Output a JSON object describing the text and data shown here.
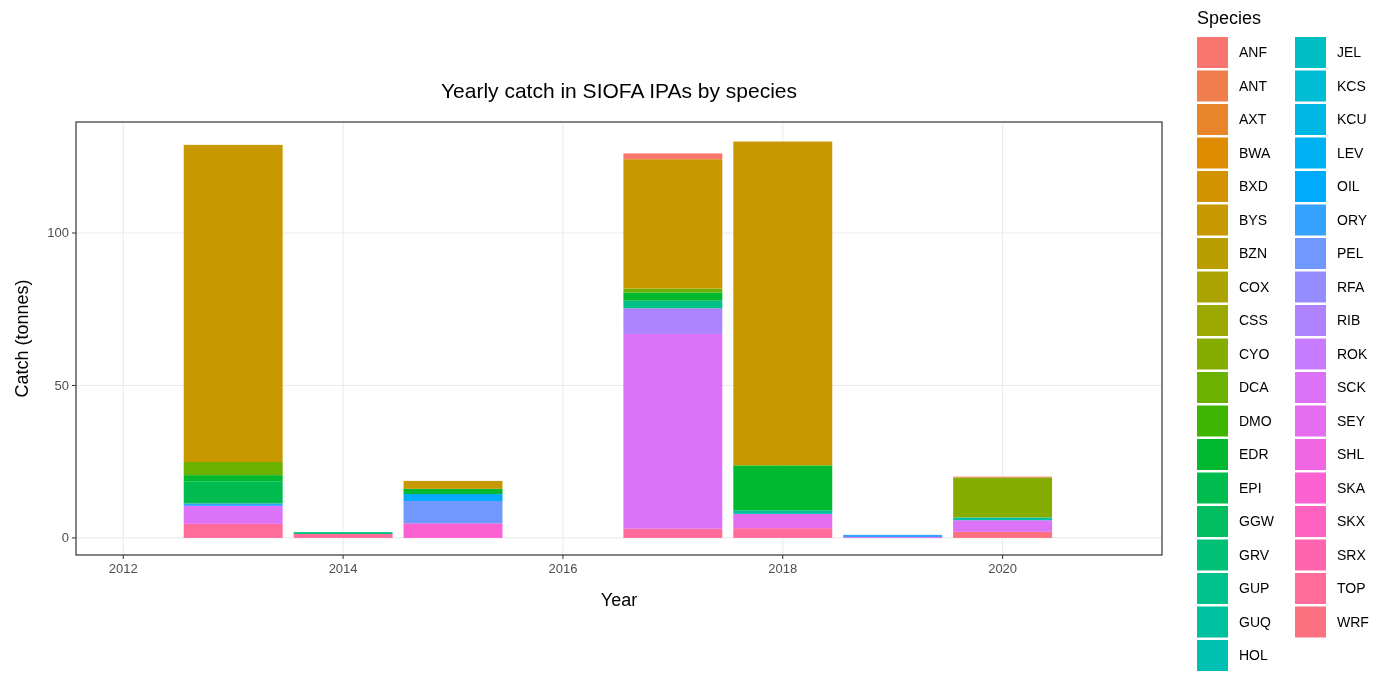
{
  "chart_data": {
    "type": "bar",
    "title": "Yearly catch in SIOFA IPAs by species",
    "xlabel": "Year",
    "ylabel": "Catch (tonnes)",
    "legend_title": "Species",
    "stacked": true,
    "grid": true,
    "legend": "right",
    "x": [
      2013,
      2014,
      2015,
      2017,
      2018,
      2019,
      2020
    ],
    "xlim": [
      2011.57,
      2021.45
    ],
    "xticks": [
      2012,
      2014,
      2016,
      2018,
      2020
    ],
    "ylim": [
      -5.6,
      136.4
    ],
    "yticks": [
      0,
      50,
      100
    ],
    "series": [
      {
        "name": "WRF",
        "color": "#FC717F",
        "values": [
          null,
          null,
          null,
          null,
          null,
          null,
          2.0
        ]
      },
      {
        "name": "TOP",
        "color": "#FF6C9A",
        "values": [
          4.6,
          1.3,
          null,
          3.0,
          3.2,
          null,
          null
        ]
      },
      {
        "name": "SRX",
        "color": "#FF65AF",
        "values": [
          null,
          null,
          null,
          null,
          null,
          null,
          null
        ]
      },
      {
        "name": "SKX",
        "color": "#FF62C1",
        "values": [
          null,
          null,
          null,
          null,
          null,
          null,
          null
        ]
      },
      {
        "name": "SKA",
        "color": "#FC61D2",
        "values": [
          null,
          null,
          4.8,
          null,
          null,
          null,
          null
        ]
      },
      {
        "name": "SHL",
        "color": "#F066E2",
        "values": [
          null,
          null,
          null,
          null,
          null,
          null,
          null
        ]
      },
      {
        "name": "SEY",
        "color": "#E56DEF",
        "values": [
          null,
          null,
          null,
          null,
          4.7,
          null,
          null
        ]
      },
      {
        "name": "SCK",
        "color": "#DC72F8",
        "values": [
          5.9,
          null,
          null,
          63.9,
          null,
          0.3,
          3.8
        ]
      },
      {
        "name": "ROK",
        "color": "#C77CFF",
        "values": [
          null,
          null,
          null,
          null,
          null,
          null,
          null
        ]
      },
      {
        "name": "RIB",
        "color": "#AE82FF",
        "values": [
          null,
          null,
          null,
          8.4,
          null,
          null,
          null
        ]
      },
      {
        "name": "RFA",
        "color": "#948CFF",
        "values": [
          null,
          null,
          null,
          null,
          null,
          null,
          null
        ]
      },
      {
        "name": "PEL",
        "color": "#7198FF",
        "values": [
          null,
          null,
          7.3,
          null,
          null,
          null,
          null
        ]
      },
      {
        "name": "ORY",
        "color": "#35A2FF",
        "values": [
          0.8,
          null,
          null,
          null,
          null,
          0.7,
          null
        ]
      },
      {
        "name": "OIL",
        "color": "#00ABFD",
        "values": [
          null,
          null,
          2.3,
          null,
          null,
          null,
          null
        ]
      },
      {
        "name": "LEV",
        "color": "#00B2F3",
        "values": [
          null,
          null,
          null,
          null,
          null,
          null,
          null
        ]
      },
      {
        "name": "KCU",
        "color": "#00B8E5",
        "values": [
          null,
          null,
          null,
          null,
          null,
          null,
          null
        ]
      },
      {
        "name": "KCS",
        "color": "#00BCD5",
        "values": [
          null,
          null,
          null,
          null,
          null,
          null,
          null
        ]
      },
      {
        "name": "JEL",
        "color": "#00BFC4",
        "values": [
          null,
          null,
          null,
          null,
          null,
          null,
          null
        ]
      },
      {
        "name": "HOL",
        "color": "#00C0B2",
        "values": [
          null,
          null,
          null,
          null,
          null,
          null,
          null
        ]
      },
      {
        "name": "GUQ",
        "color": "#00C19F",
        "values": [
          null,
          null,
          null,
          null,
          1.1,
          null,
          0.9
        ]
      },
      {
        "name": "GUP",
        "color": "#00C08B",
        "values": [
          null,
          null,
          null,
          2.5,
          null,
          null,
          null
        ]
      },
      {
        "name": "GRV",
        "color": "#00BF76",
        "values": [
          null,
          0.6,
          null,
          null,
          null,
          null,
          null
        ]
      },
      {
        "name": "GGW",
        "color": "#00BD5F",
        "values": [
          null,
          null,
          null,
          null,
          null,
          null,
          null
        ]
      },
      {
        "name": "EPI",
        "color": "#00BB4E",
        "values": [
          7.3,
          null,
          null,
          null,
          null,
          null,
          null
        ]
      },
      {
        "name": "EDR",
        "color": "#00B92F",
        "values": [
          2.0,
          null,
          1.7,
          2.7,
          14.8,
          null,
          null
        ]
      },
      {
        "name": "DMO",
        "color": "#3EB500",
        "values": [
          null,
          null,
          null,
          null,
          null,
          null,
          null
        ]
      },
      {
        "name": "DCA",
        "color": "#6BB100",
        "values": [
          4.3,
          null,
          null,
          1.3,
          null,
          null,
          null
        ]
      },
      {
        "name": "CYO",
        "color": "#85AD00",
        "values": [
          null,
          null,
          null,
          null,
          null,
          null,
          13.1
        ]
      },
      {
        "name": "CSS",
        "color": "#9AA800",
        "values": [
          null,
          null,
          null,
          null,
          null,
          null,
          null
        ]
      },
      {
        "name": "COX",
        "color": "#ABA300",
        "values": [
          null,
          null,
          null,
          null,
          null,
          null,
          null
        ]
      },
      {
        "name": "BZN",
        "color": "#BA9E00",
        "values": [
          null,
          null,
          null,
          null,
          null,
          null,
          null
        ]
      },
      {
        "name": "BYS",
        "color": "#C79800",
        "values": [
          104.0,
          null,
          2.6,
          42.4,
          106.2,
          null,
          null
        ]
      },
      {
        "name": "BXD",
        "color": "#D39200",
        "values": [
          null,
          null,
          null,
          null,
          null,
          null,
          null
        ]
      },
      {
        "name": "BWA",
        "color": "#DE8C00",
        "values": [
          null,
          null,
          null,
          null,
          null,
          null,
          null
        ]
      },
      {
        "name": "AXT",
        "color": "#E8852B",
        "values": [
          null,
          null,
          null,
          null,
          null,
          null,
          null
        ]
      },
      {
        "name": "ANT",
        "color": "#F07E4D",
        "values": [
          null,
          null,
          null,
          null,
          null,
          null,
          0.3
        ]
      },
      {
        "name": "ANF",
        "color": "#F8766D",
        "values": [
          null,
          null,
          null,
          1.9,
          null,
          null,
          null
        ]
      }
    ]
  }
}
